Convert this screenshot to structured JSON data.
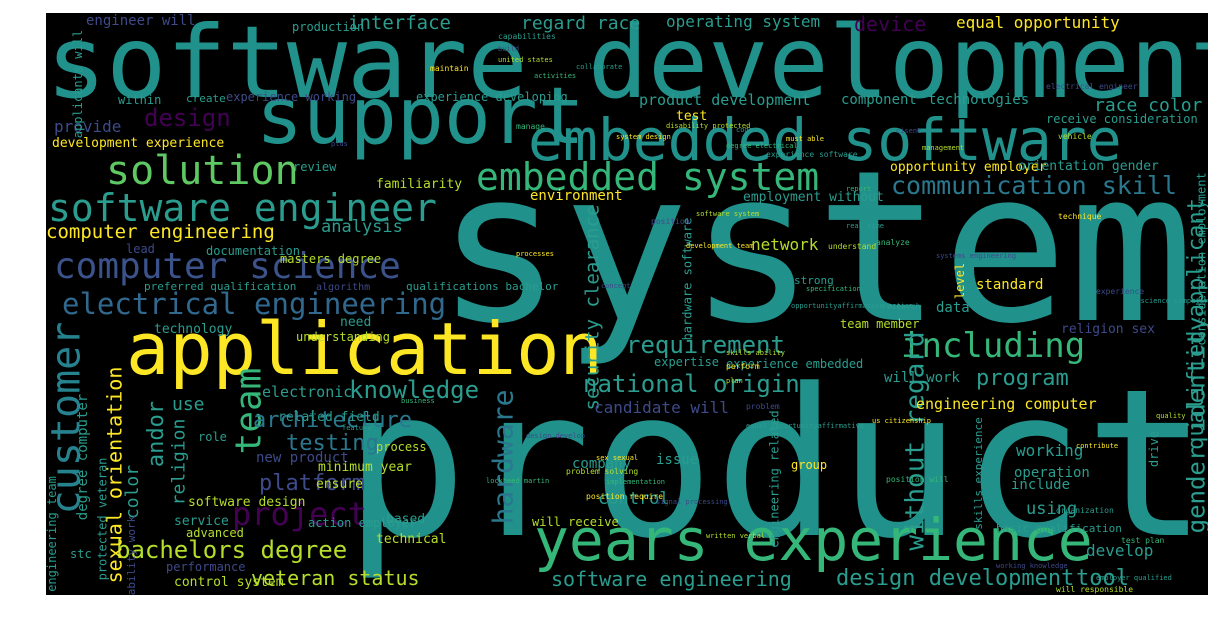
{
  "words": [
    {
      "text": "system",
      "color": "#21918c"
    },
    {
      "text": "product",
      "color": "#21918c"
    },
    {
      "text": "software development",
      "color": "#21918c"
    },
    {
      "text": "support",
      "color": "#21918c"
    },
    {
      "text": "embedded software",
      "color": "#21918c"
    },
    {
      "text": "application",
      "color": "#fde725"
    },
    {
      "text": "years experience",
      "color": "#35b779"
    },
    {
      "text": "embedded system",
      "color": "#35b779"
    },
    {
      "text": "solution",
      "color": "#5ec962"
    },
    {
      "text": "software engineer",
      "color": "#2a9d8f"
    },
    {
      "text": "computer science",
      "color": "#3b528b"
    },
    {
      "text": "electrical engineering",
      "color": "#31688e"
    },
    {
      "text": "customer",
      "color": "#26828e"
    },
    {
      "text": "team",
      "color": "#35b779"
    },
    {
      "text": "project",
      "color": "#440154"
    },
    {
      "text": "including",
      "color": "#35b779"
    },
    {
      "text": "communication skill",
      "color": "#2a788e"
    },
    {
      "text": "hardware",
      "color": "#2a788e"
    },
    {
      "text": "national origin",
      "color": "#2a9d8f"
    },
    {
      "text": "knowledge",
      "color": "#2a9d8f"
    },
    {
      "text": "requirement",
      "color": "#2a9d8f"
    },
    {
      "text": "bachelors degree",
      "color": "#b5de2b"
    },
    {
      "text": "design development",
      "color": "#2a9d8f"
    },
    {
      "text": "software engineering",
      "color": "#2a9d8f"
    },
    {
      "text": "veteran status",
      "color": "#b5de2b"
    },
    {
      "text": "computer engineering",
      "color": "#fde725"
    },
    {
      "text": "sexual orientation",
      "color": "#fde725"
    },
    {
      "text": "andor",
      "color": "#2a9d8f"
    },
    {
      "text": "platform",
      "color": "#3e4a89"
    },
    {
      "text": "architecture",
      "color": "#2a788e"
    },
    {
      "text": "testing",
      "color": "#2a788e"
    },
    {
      "text": "without regard",
      "color": "#2a9d8f"
    },
    {
      "text": "program",
      "color": "#2a9d8f"
    },
    {
      "text": "gender identity",
      "color": "#2a9d8f"
    },
    {
      "text": "qualified applicant",
      "color": "#2a9d8f"
    },
    {
      "text": "security clearance",
      "color": "#2a9d8f"
    },
    {
      "text": "design",
      "color": "#440154"
    },
    {
      "text": "interface",
      "color": "#2a9d8f"
    },
    {
      "text": "operating system",
      "color": "#2a9d8f"
    },
    {
      "text": "device",
      "color": "#440154"
    },
    {
      "text": "equal opportunity",
      "color": "#fde725"
    },
    {
      "text": "regard race",
      "color": "#2a9d8f"
    },
    {
      "text": "engineer will",
      "color": "#3e4a89"
    },
    {
      "text": "production",
      "color": "#2a9d8f"
    },
    {
      "text": "product development",
      "color": "#2a9d8f"
    },
    {
      "text": "component",
      "color": "#2a9d8f"
    },
    {
      "text": "technologies",
      "color": "#2a9d8f"
    },
    {
      "text": "race color",
      "color": "#2a9d8f"
    },
    {
      "text": "provide",
      "color": "#3e4a89"
    },
    {
      "text": "development experience",
      "color": "#fde725"
    },
    {
      "text": "environment",
      "color": "#fde725"
    },
    {
      "text": "familiarity",
      "color": "#b5de2b"
    },
    {
      "text": "analysis",
      "color": "#2a9d8f"
    },
    {
      "text": "network",
      "color": "#b5de2b"
    },
    {
      "text": "standard",
      "color": "#fde725"
    },
    {
      "text": "data",
      "color": "#2a9d8f"
    },
    {
      "text": "tool",
      "color": "#2a9d8f"
    },
    {
      "text": "develop",
      "color": "#2a9d8f"
    },
    {
      "text": "using",
      "color": "#2a9d8f"
    },
    {
      "text": "include",
      "color": "#2a9d8f"
    },
    {
      "text": "operation",
      "color": "#2a9d8f"
    },
    {
      "text": "working",
      "color": "#2a9d8f"
    },
    {
      "text": "engineering computer",
      "color": "#fde725"
    },
    {
      "text": "will work",
      "color": "#2a9d8f"
    },
    {
      "text": "candidate will",
      "color": "#3e4a89"
    },
    {
      "text": "use",
      "color": "#2a9d8f"
    },
    {
      "text": "electronic",
      "color": "#2a9d8f"
    },
    {
      "text": "related field",
      "color": "#2a9d8f"
    },
    {
      "text": "color",
      "color": "#2a9d8f"
    },
    {
      "text": "religion",
      "color": "#2a9d8f"
    },
    {
      "text": "control",
      "color": "#2a9d8f"
    },
    {
      "text": "company",
      "color": "#2a9d8f"
    },
    {
      "text": "issue",
      "color": "#2a9d8f"
    },
    {
      "text": "group",
      "color": "#fde725"
    },
    {
      "text": "new product",
      "color": "#3e4a89"
    },
    {
      "text": "minimum year",
      "color": "#b5de2b"
    },
    {
      "text": "ensure",
      "color": "#b5de2b"
    },
    {
      "text": "software design",
      "color": "#b5de2b"
    },
    {
      "text": "service",
      "color": "#2a9d8f"
    },
    {
      "text": "technical",
      "color": "#b5de2b"
    },
    {
      "text": "based",
      "color": "#2a9d8f"
    },
    {
      "text": "control system",
      "color": "#b5de2b"
    },
    {
      "text": "performance",
      "color": "#3e4a89"
    },
    {
      "text": "advanced",
      "color": "#b5de2b"
    },
    {
      "text": "technology",
      "color": "#2a9d8f"
    },
    {
      "text": "understanding",
      "color": "#b5de2b"
    },
    {
      "text": "need",
      "color": "#2a9d8f"
    },
    {
      "text": "documentation",
      "color": "#2a9d8f"
    },
    {
      "text": "lead",
      "color": "#3e4a89"
    },
    {
      "text": "masters degree",
      "color": "#b5de2b"
    },
    {
      "text": "preferred qualification",
      "color": "#2a9d8f"
    },
    {
      "text": "qualifications bachelor",
      "color": "#2a9d8f"
    },
    {
      "text": "algorithm",
      "color": "#3e4a89"
    },
    {
      "text": "within",
      "color": "#2a9d8f"
    },
    {
      "text": "create",
      "color": "#2a9d8f"
    },
    {
      "text": "experience working",
      "color": "#3e4a89"
    },
    {
      "text": "experience developing",
      "color": "#2a9d8f"
    },
    {
      "text": "test",
      "color": "#fde725"
    },
    {
      "text": "review",
      "color": "#2a9d8f"
    },
    {
      "text": "opportunity employer",
      "color": "#fde725"
    },
    {
      "text": "orientation gender",
      "color": "#2a9d8f"
    },
    {
      "text": "receive consideration",
      "color": "#2a9d8f"
    },
    {
      "text": "employment without",
      "color": "#2a9d8f"
    },
    {
      "text": "team member",
      "color": "#b5de2b"
    },
    {
      "text": "experience embedded",
      "color": "#2a9d8f"
    },
    {
      "text": "expertise",
      "color": "#2a9d8f"
    },
    {
      "text": "religion sex",
      "color": "#3e4a89"
    },
    {
      "text": "protected veteran",
      "color": "#2a9d8f"
    },
    {
      "text": "degree computer",
      "color": "#2a9d8f"
    },
    {
      "text": "engineering team",
      "color": "#2a9d8f"
    },
    {
      "text": "applicants will",
      "color": "#2a9d8f"
    },
    {
      "text": "will receive",
      "color": "#b5de2b"
    },
    {
      "text": "hardware software",
      "color": "#2a9d8f"
    },
    {
      "text": "engineering related",
      "color": "#2a9d8f"
    },
    {
      "text": "level",
      "color": "#fde725"
    },
    {
      "text": "consideration employment",
      "color": "#2a9d8f"
    },
    {
      "text": "action employer",
      "color": "#2a9d8f"
    },
    {
      "text": "drive",
      "color": "#2a9d8f"
    },
    {
      "text": "strong",
      "color": "#2a9d8f"
    },
    {
      "text": "ability work",
      "color": "#3e4a89"
    },
    {
      "text": "role",
      "color": "#2a9d8f"
    },
    {
      "text": "process",
      "color": "#b5de2b"
    },
    {
      "text": "stc",
      "color": "#2a9d8f"
    },
    {
      "text": "skills experience",
      "color": "#2a9d8f"
    },
    {
      "text": "basic qualification",
      "color": "#2a9d8f"
    }
  ],
  "tiny_words": [
    "capabilities",
    "build",
    "united states",
    "maintain",
    "activities",
    "collaborate",
    "electrical engineer",
    "disability protected",
    "system design",
    "manage",
    "code",
    "cisent",
    "vehicle",
    "must able",
    "degree electrical",
    "experience software",
    "plus",
    "management",
    "technique",
    "report",
    "real time",
    "position",
    "software system",
    "processes",
    "analyze",
    "opportunityaffirmative action",
    "systems engineering",
    "understand",
    "development team",
    "specification",
    "research",
    "concept",
    "skills ability",
    "perform",
    "business",
    "feature",
    "problem",
    "plan",
    "us citizenship",
    "position will",
    "equal opportunityaffirmative",
    "design develop",
    "problem solving",
    "sex sexual",
    "implementation",
    "organization",
    "signal processing",
    "written verbal",
    "position require",
    "lockheed martin",
    "science computer",
    "experience",
    "quality",
    "contribute",
    "test plan",
    "employer qualified",
    "working knowledge",
    "will responsible"
  ]
}
